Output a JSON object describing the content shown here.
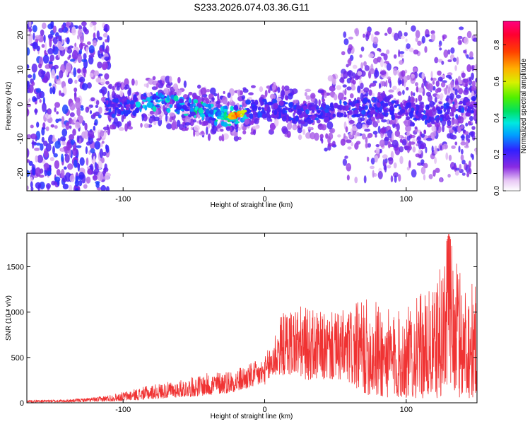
{
  "title": "S233.2026.074.03.36.G11",
  "colorbar": {
    "label": "Normalized spectral amplitude",
    "ticks": [
      "0.0",
      "0.2",
      "0.4",
      "0.6",
      "0.8"
    ],
    "tick_values": [
      0.0,
      0.2,
      0.4,
      0.6,
      0.8
    ],
    "range": [
      0,
      0.93
    ]
  },
  "chart_data": [
    {
      "type": "heatmap",
      "xlabel": "Height of straight line (km)",
      "ylabel": "Frequency (Hz)",
      "xlim": [
        -168,
        150
      ],
      "ylim": [
        -25,
        24
      ],
      "x_ticks": [
        "-100",
        "0",
        "100"
      ],
      "x_tick_values": [
        -100,
        0,
        100
      ],
      "y_ticks": [
        "20",
        "10",
        "0",
        "-10",
        "-20"
      ],
      "y_tick_values": [
        20,
        10,
        0,
        -10,
        -20
      ],
      "ridge": {
        "description_points_x": [
          -110,
          -90,
          -75,
          -60,
          -45,
          -35,
          -25,
          -18,
          -10,
          0,
          15,
          30,
          45,
          60,
          80,
          100,
          120,
          140,
          150
        ],
        "description_points_y": [
          -1,
          0,
          1,
          0,
          -2,
          -3,
          -3.5,
          -3,
          -1.5,
          -1,
          -2,
          -3,
          -2,
          -1,
          -1,
          -2,
          -3,
          -1,
          0
        ],
        "peak_x": -20,
        "peak_y": -3.5,
        "peak_amplitude": 0.9
      }
    },
    {
      "type": "line",
      "xlabel": "Height of straight line (km)",
      "ylabel": "SNR (10 * v/v)",
      "xlim": [
        -168,
        150
      ],
      "ylim": [
        0,
        1870
      ],
      "x_ticks": [
        "-100",
        "0",
        "100"
      ],
      "x_tick_values": [
        -100,
        0,
        100
      ],
      "y_ticks": [
        "0",
        "500",
        "1000",
        "1500"
      ],
      "y_tick_values": [
        0,
        500,
        1000,
        1500
      ],
      "color": "#f03333",
      "envelope": {
        "x": [
          -168,
          -140,
          -120,
          -100,
          -80,
          -60,
          -40,
          -20,
          0,
          5,
          10,
          20,
          30,
          40,
          50,
          60,
          70,
          80,
          90,
          100,
          110,
          120,
          130,
          140,
          150
        ],
        "upper": [
          30,
          35,
          60,
          120,
          200,
          250,
          330,
          380,
          500,
          700,
          950,
          1100,
          1050,
          1000,
          1000,
          1050,
          1150,
          1150,
          1000,
          1050,
          1200,
          1250,
          1870,
          1400,
          1300
        ],
        "lower": [
          5,
          5,
          10,
          20,
          40,
          60,
          80,
          120,
          200,
          250,
          300,
          300,
          250,
          250,
          250,
          200,
          100,
          50,
          50,
          50,
          50,
          50,
          50,
          50,
          50
        ]
      }
    }
  ]
}
